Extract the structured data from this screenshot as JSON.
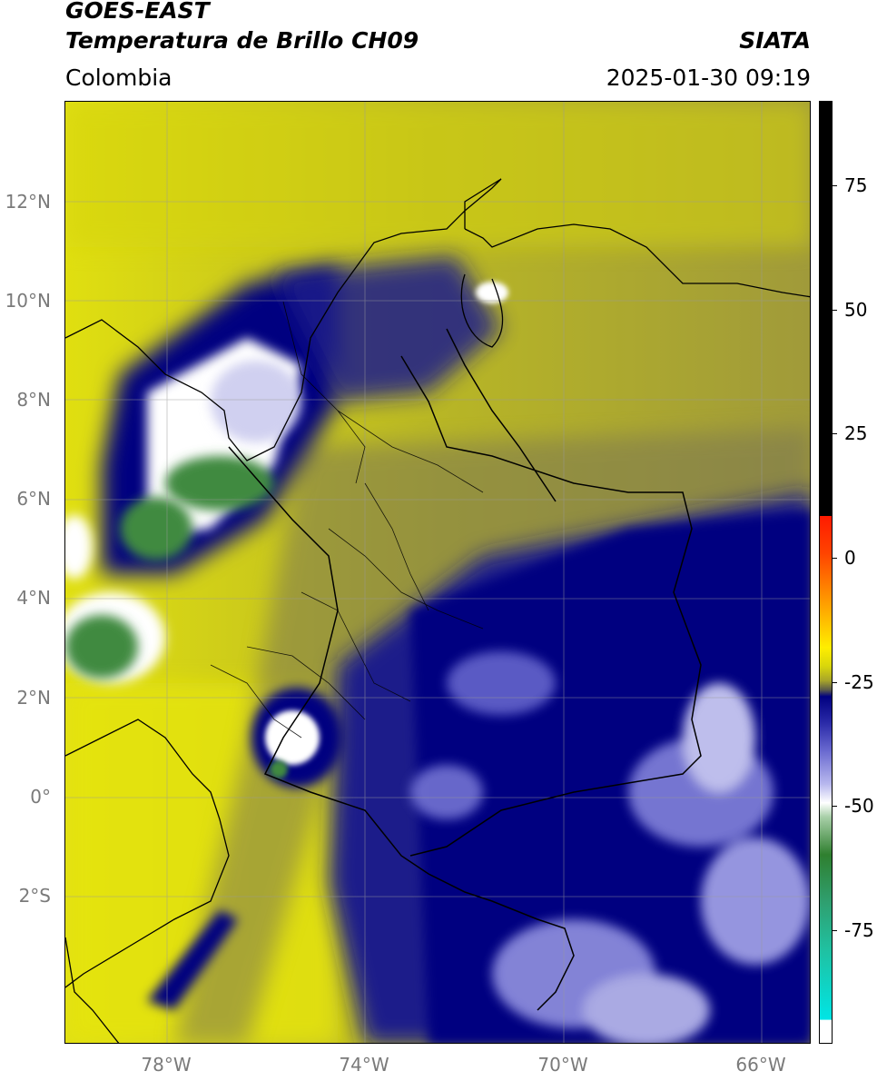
{
  "header": {
    "satellite": "GOES-EAST",
    "product": "Temperatura de Brillo CH09",
    "organization": "SIATA",
    "region": "Colombia",
    "datetime": "2025-01-30 09:19"
  },
  "map": {
    "lat_ticks": [
      "12°N",
      "10°N",
      "8°N",
      "6°N",
      "4°N",
      "2°N",
      "0°",
      "2°S"
    ],
    "lon_ticks": [
      "78°W",
      "74°W",
      "70°W",
      "66°W"
    ],
    "lat_range": [
      -5,
      14
    ],
    "lon_range": [
      -80,
      -65
    ]
  },
  "colorbar": {
    "ticks": [
      "75",
      "50",
      "25",
      "0",
      "-25",
      "-50",
      "-75"
    ],
    "colors": [
      "#000000",
      "#ff1a00",
      "#ff9900",
      "#ffee00",
      "#c9c70f",
      "#5a5a4a",
      "#000080",
      "#6a6ad0",
      "#ffffff",
      "#2f7f2f",
      "#20c0a0",
      "#00e5e5"
    ]
  }
}
